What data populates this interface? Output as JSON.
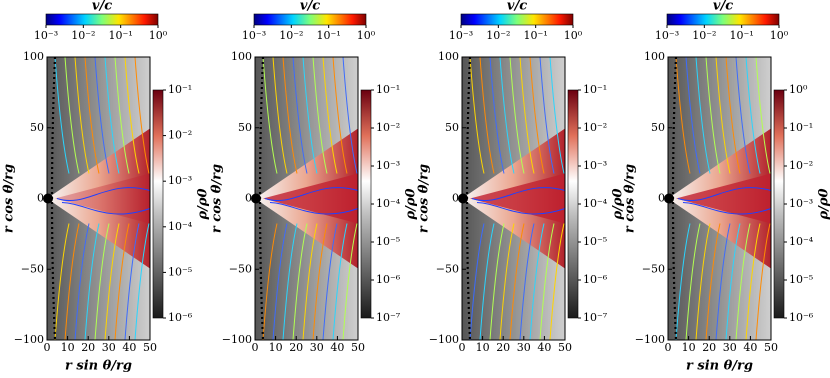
{
  "chart_data": [
    {
      "type": "streamplot",
      "xlabel": "r sin θ/rg",
      "ylabel": "r cos θ/rg",
      "xlim": [
        0,
        50
      ],
      "ylim": [
        -100,
        100
      ],
      "xticks": [
        0,
        10,
        20,
        30,
        40,
        50
      ],
      "yticks": [
        {
          "value": -100,
          "label": "−100"
        },
        {
          "value": -50,
          "label": "−50"
        },
        0,
        50,
        100
      ],
      "density_colorbar": {
        "label": "ρ/ρ0",
        "log": true,
        "lim": [
          1e-06,
          0.1
        ],
        "ticks": [
          {
            "value": 1e-06,
            "label": "10⁻⁶"
          },
          {
            "value": 1e-05,
            "label": "10⁻⁵"
          },
          {
            "value": 0.0001,
            "label": "10⁻⁴"
          },
          {
            "value": 0.001,
            "label": "10⁻³"
          },
          {
            "value": 0.01,
            "label": "10⁻²"
          },
          {
            "value": 0.1,
            "label": "10⁻¹"
          }
        ]
      },
      "velocity_colorbar": {
        "label": "v/c",
        "log": true,
        "lim": [
          0.001,
          1
        ],
        "ticks": [
          {
            "value": 0.001,
            "label": "10⁻³"
          },
          {
            "value": 0.01,
            "label": "10⁻²"
          },
          {
            "value": 0.1,
            "label": "10⁻¹"
          },
          {
            "value": 1,
            "label": "10⁰"
          }
        ]
      }
    },
    {
      "type": "streamplot",
      "ylabel": "r cos θ/rg",
      "xlim": [
        0,
        50
      ],
      "ylim": [
        -100,
        100
      ],
      "xticks": [
        0,
        10,
        20,
        30,
        40,
        50
      ],
      "yticks": [
        {
          "value": -100,
          "label": "−100"
        },
        {
          "value": -50,
          "label": "−50"
        },
        0,
        50,
        100
      ],
      "density_colorbar": {
        "label": "ρ/ρ0",
        "log": true,
        "lim": [
          1e-07,
          0.1
        ],
        "ticks": [
          {
            "value": 1e-07,
            "label": "10⁻⁷"
          },
          {
            "value": 1e-06,
            "label": "10⁻⁶"
          },
          {
            "value": 1e-05,
            "label": "10⁻⁵"
          },
          {
            "value": 0.0001,
            "label": "10⁻⁴"
          },
          {
            "value": 0.001,
            "label": "10⁻³"
          },
          {
            "value": 0.01,
            "label": "10⁻²"
          },
          {
            "value": 0.1,
            "label": "10⁻¹"
          }
        ]
      },
      "velocity_colorbar": {
        "label": "v/c",
        "log": true,
        "lim": [
          0.001,
          1
        ],
        "ticks": [
          {
            "value": 0.001,
            "label": "10⁻³"
          },
          {
            "value": 0.01,
            "label": "10⁻²"
          },
          {
            "value": 0.1,
            "label": "10⁻¹"
          },
          {
            "value": 1,
            "label": "10⁰"
          }
        ]
      }
    },
    {
      "type": "streamplot",
      "ylabel": "r cos θ/rg",
      "xlim": [
        0,
        50
      ],
      "ylim": [
        -100,
        100
      ],
      "xticks": [
        0,
        10,
        20,
        30,
        40,
        50
      ],
      "yticks": [
        {
          "value": -100,
          "label": "−100"
        },
        {
          "value": -50,
          "label": "−50"
        },
        0,
        50,
        100
      ],
      "density_colorbar": {
        "label": "ρ/ρ0",
        "log": true,
        "lim": [
          1e-07,
          0.1
        ],
        "ticks": [
          {
            "value": 1e-07,
            "label": "10⁻⁷"
          },
          {
            "value": 1e-06,
            "label": "10⁻⁶"
          },
          {
            "value": 1e-05,
            "label": "10⁻⁵"
          },
          {
            "value": 0.0001,
            "label": "10⁻⁴"
          },
          {
            "value": 0.001,
            "label": "10⁻³"
          },
          {
            "value": 0.01,
            "label": "10⁻²"
          },
          {
            "value": 0.1,
            "label": "10⁻¹"
          }
        ]
      },
      "velocity_colorbar": {
        "label": "v/c",
        "log": true,
        "lim": [
          0.001,
          1
        ],
        "ticks": [
          {
            "value": 0.001,
            "label": "10⁻³"
          },
          {
            "value": 0.01,
            "label": "10⁻²"
          },
          {
            "value": 0.1,
            "label": "10⁻¹"
          },
          {
            "value": 1,
            "label": "10⁰"
          }
        ]
      }
    },
    {
      "type": "streamplot",
      "xlabel": "r sin θ/rg",
      "ylabel": "r cos θ/rg",
      "xlim": [
        0,
        50
      ],
      "ylim": [
        -100,
        100
      ],
      "xticks": [
        0,
        10,
        20,
        30,
        40,
        50
      ],
      "yticks": [
        {
          "value": -100,
          "label": "−100"
        },
        {
          "value": -50,
          "label": "−50"
        },
        0,
        50,
        100
      ],
      "density_colorbar": {
        "label": "ρ/ρ0",
        "log": true,
        "lim": [
          1e-06,
          1
        ],
        "ticks": [
          {
            "value": 1e-06,
            "label": "10⁻⁶"
          },
          {
            "value": 1e-05,
            "label": "10⁻⁵"
          },
          {
            "value": 0.0001,
            "label": "10⁻⁴"
          },
          {
            "value": 0.001,
            "label": "10⁻³"
          },
          {
            "value": 0.01,
            "label": "10⁻²"
          },
          {
            "value": 0.1,
            "label": "10⁻¹"
          },
          {
            "value": 1,
            "label": "10⁰"
          }
        ]
      },
      "velocity_colorbar": {
        "label": "v/c",
        "log": true,
        "lim": [
          0.001,
          1
        ],
        "ticks": [
          {
            "value": 0.001,
            "label": "10⁻³"
          },
          {
            "value": 0.01,
            "label": "10⁻²"
          },
          {
            "value": 0.1,
            "label": "10⁻¹"
          },
          {
            "value": 1,
            "label": "10⁰"
          }
        ]
      }
    }
  ]
}
